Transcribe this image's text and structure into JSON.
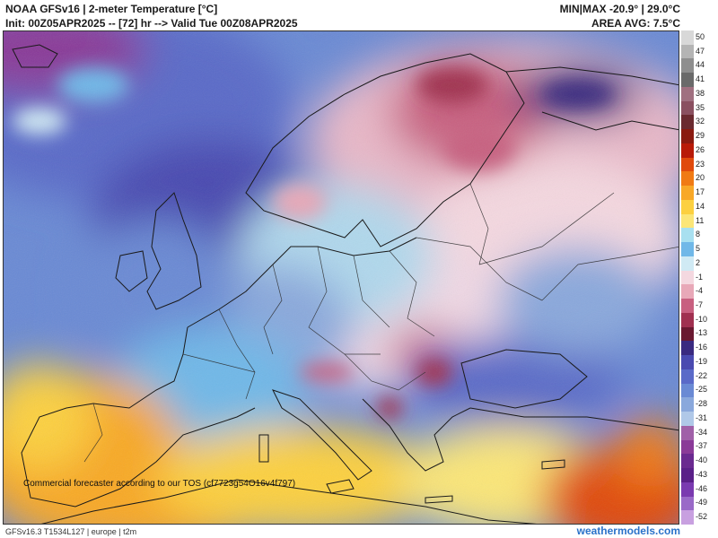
{
  "header": {
    "title": "NOAA GFSv16 | 2-meter Temperature [°C]",
    "init": "Init: 00Z05APR2025 -- [72] hr --> Valid Tue 00Z08APR2025",
    "minmax": "MIN|MAX -20.9° | 29.0°C",
    "area_avg": "AREA AVG: 7.5°C"
  },
  "map": {
    "region": "europe",
    "disclaimer": "Commercial forecaster according to our TOS (cf7723g54O16v4f797)"
  },
  "colorbar": {
    "labels": [
      "50",
      "47",
      "44",
      "41",
      "38",
      "35",
      "32",
      "29",
      "26",
      "23",
      "20",
      "17",
      "14",
      "11",
      "8",
      "5",
      "2",
      "-1",
      "-4",
      "-7",
      "-10",
      "-13",
      "-16",
      "-19",
      "-22",
      "-25",
      "-28",
      "-31",
      "-34",
      "-37",
      "-40",
      "-43",
      "-46",
      "-49",
      "-52"
    ],
    "colors": [
      "#d8d8d8",
      "#b4b4b4",
      "#8e8e8e",
      "#6a6a6a",
      "#a07080",
      "#8a5060",
      "#6a2a30",
      "#8a1a10",
      "#b81a08",
      "#e04a0c",
      "#f07a14",
      "#f8a828",
      "#fcd040",
      "#fbe678",
      "#a8e0f0",
      "#70b8e8",
      "#d0eaf4",
      "#f4d8e0",
      "#e8a8b8",
      "#c86080",
      "#a03050",
      "#6a1830",
      "#3a2a80",
      "#4a4ab0",
      "#5a6ac8",
      "#6a8ad4",
      "#8aa8dc",
      "#b0c8e8",
      "#a060a8",
      "#8a3a98",
      "#6a2a90",
      "#5a2088",
      "#7a3ab0",
      "#9a6ac8",
      "#c8a0e0"
    ]
  },
  "footer": {
    "model_info": "GFSv16.3 T1534L127 | europe | t2m",
    "brand": "weathermodels.com"
  }
}
